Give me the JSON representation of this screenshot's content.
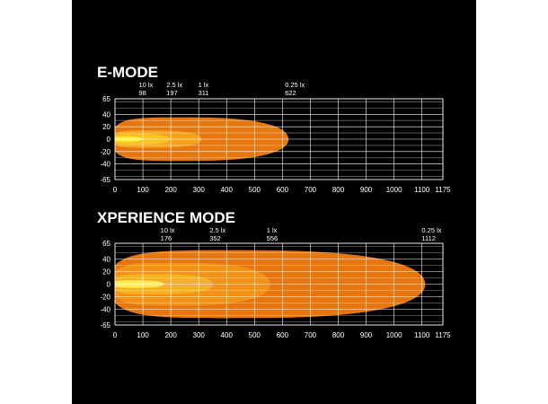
{
  "chart_data": [
    {
      "type": "area",
      "title": "E-MODE",
      "xlabel": "",
      "ylabel": "",
      "xlim": [
        0,
        1175
      ],
      "ylim": [
        -65,
        65
      ],
      "x_ticks": [
        0,
        100,
        200,
        300,
        400,
        500,
        600,
        700,
        800,
        900,
        1000,
        1100,
        1175
      ],
      "y_ticks": [
        65,
        40,
        20,
        0,
        -20,
        -40,
        -65
      ],
      "grid": true,
      "legend": "none",
      "lux_markers": [
        {
          "lux": "10 lx",
          "distance": "98"
        },
        {
          "lux": "2.5 lx",
          "distance": "197"
        },
        {
          "lux": "1 lx",
          "distance": "311"
        },
        {
          "lux": "0.25 lx",
          "distance": "622"
        }
      ],
      "series": [
        {
          "lux": "0.25 lx",
          "reach": 622,
          "half_width": 35,
          "color": "#ee7a10"
        },
        {
          "lux": "1 lx",
          "reach": 311,
          "half_width": 14,
          "color": "#f5a31c"
        },
        {
          "lux": "2.5 lx",
          "reach": 197,
          "half_width": 9,
          "color": "#f8c424"
        },
        {
          "lux": "10 lx",
          "reach": 98,
          "half_width": 4,
          "color": "#fff23a"
        }
      ]
    },
    {
      "type": "area",
      "title": "XPERIENCE MODE",
      "xlabel": "",
      "ylabel": "",
      "xlim": [
        0,
        1175
      ],
      "ylim": [
        -65,
        65
      ],
      "x_ticks": [
        0,
        100,
        200,
        300,
        400,
        500,
        600,
        700,
        800,
        900,
        1000,
        1100,
        1175
      ],
      "y_ticks": [
        65,
        40,
        20,
        0,
        -20,
        -40,
        -65
      ],
      "grid": true,
      "legend": "none",
      "lux_markers": [
        {
          "lux": "10 lx",
          "distance": "176"
        },
        {
          "lux": "2.5 lx",
          "distance": "352"
        },
        {
          "lux": "1 lx",
          "distance": "556"
        },
        {
          "lux": "0.25 lx",
          "distance": "1112"
        }
      ],
      "series": [
        {
          "lux": "0.25 lx",
          "reach": 1112,
          "half_width": 54,
          "color": "#ee7a10"
        },
        {
          "lux": "1 lx",
          "reach": 556,
          "half_width": 34,
          "color": "#f29418"
        },
        {
          "lux": "2.5 lx",
          "reach": 352,
          "half_width": 16,
          "color": "#f6b21f"
        },
        {
          "lux": "10 lx",
          "reach": 176,
          "half_width": 6,
          "color": "#fff23a"
        }
      ]
    }
  ]
}
